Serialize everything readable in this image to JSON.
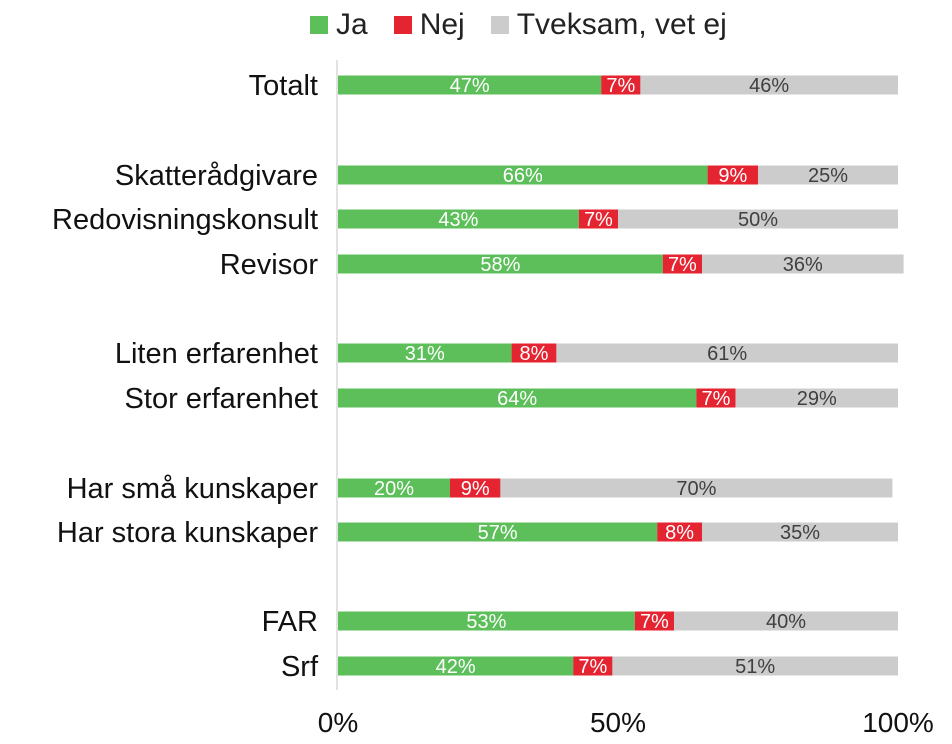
{
  "colors": {
    "ja": "#5cbf5a",
    "nej": "#e52431",
    "tveksam": "#cccccc",
    "axis": "#d9d9d9"
  },
  "chart_data": {
    "type": "bar",
    "orientation": "horizontal",
    "stacked": true,
    "title": "",
    "xlabel": "",
    "ylabel": "",
    "xlim": [
      0,
      100
    ],
    "x_ticks": [
      "0%",
      "50%",
      "100%"
    ],
    "legend_position": "top",
    "categories": [
      "Totalt",
      "Skatterådgivare",
      "Redovisningskonsult",
      "Revisor",
      "Liten erfarenhet",
      "Stor erfarenhet",
      "Har små kunskaper",
      "Har stora kunskaper",
      "FAR",
      "Srf"
    ],
    "series": [
      {
        "name": "Ja",
        "values": [
          47,
          66,
          43,
          58,
          31,
          64,
          20,
          57,
          53,
          42
        ],
        "labels": [
          "47%",
          "66%",
          "43%",
          "58%",
          "31%",
          "64%",
          "20%",
          "57%",
          "53%",
          "42%"
        ]
      },
      {
        "name": "Nej",
        "values": [
          7,
          9,
          7,
          7,
          8,
          7,
          9,
          8,
          7,
          7
        ],
        "labels": [
          "7%",
          "9%",
          "7%",
          "7%",
          "8%",
          "7%",
          "9%",
          "8%",
          "7%",
          "7%"
        ]
      },
      {
        "name": "Tveksam, vet ej",
        "values": [
          46,
          25,
          50,
          36,
          61,
          29,
          70,
          35,
          40,
          51
        ],
        "labels": [
          "46%",
          "25%",
          "50%",
          "36%",
          "61%",
          "29%",
          "70%",
          "35%",
          "40%",
          "51%"
        ]
      }
    ]
  }
}
